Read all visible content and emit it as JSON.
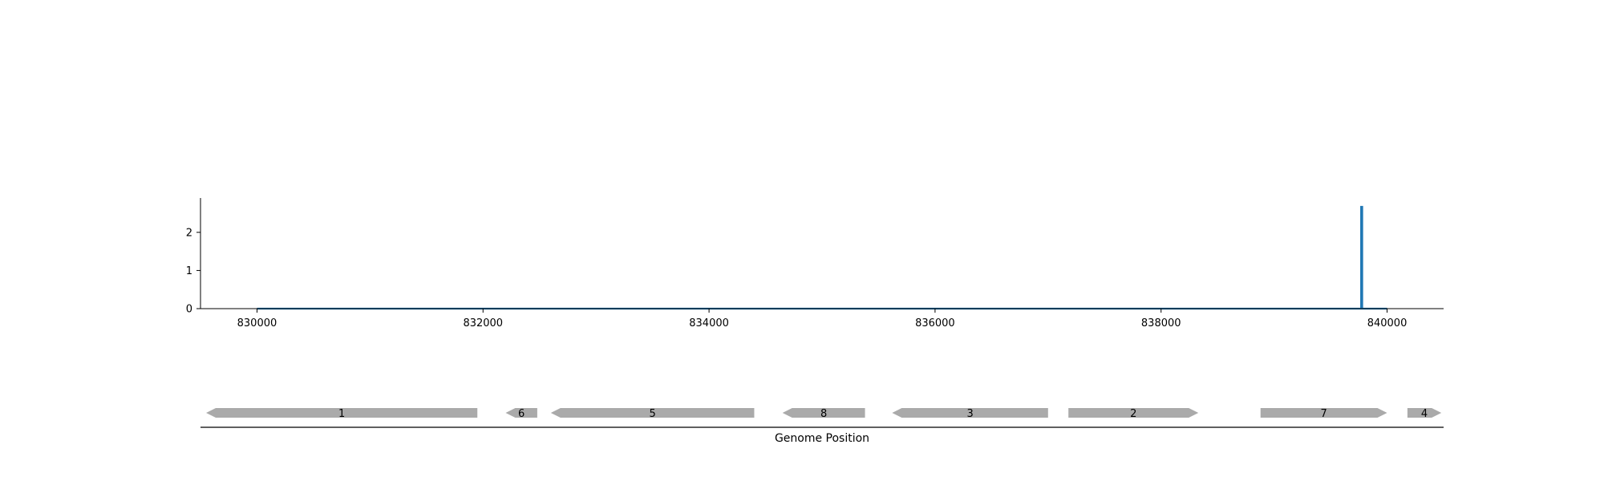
{
  "chart_data": {
    "type": "line",
    "title": "",
    "xlabel": "Genome Position",
    "ylabel": "",
    "xlim": [
      829500,
      840500
    ],
    "ylim": [
      0,
      2.9
    ],
    "x_ticks": [
      830000,
      832000,
      834000,
      836000,
      838000,
      840000
    ],
    "x_tick_labels": [
      "830000",
      "832000",
      "834000",
      "836000",
      "838000",
      "840000"
    ],
    "y_ticks": [
      0,
      1,
      2
    ],
    "y_tick_labels": [
      "0",
      "1",
      "2"
    ],
    "grid": false,
    "series": [
      {
        "color": "#1f77b4",
        "x": [
          830000,
          839770,
          839770,
          839780,
          839780,
          840000
        ],
        "values": [
          0,
          0,
          2.67,
          2.67,
          0,
          0
        ]
      }
    ],
    "genes": [
      {
        "label": "1",
        "start": 829550,
        "end": 831950,
        "strand": "-",
        "color": "#aaaaaa"
      },
      {
        "label": "6",
        "start": 832200,
        "end": 832480,
        "strand": "-",
        "color": "#aaaaaa"
      },
      {
        "label": "5",
        "start": 832600,
        "end": 834400,
        "strand": "-",
        "color": "#aaaaaa"
      },
      {
        "label": "8",
        "start": 834650,
        "end": 835380,
        "strand": "-",
        "color": "#aaaaaa"
      },
      {
        "label": "3",
        "start": 835620,
        "end": 837000,
        "strand": "-",
        "color": "#aaaaaa"
      },
      {
        "label": "2",
        "start": 837180,
        "end": 838330,
        "strand": "+",
        "color": "#aaaaaa"
      },
      {
        "label": "7",
        "start": 838880,
        "end": 840000,
        "strand": "+",
        "color": "#aaaaaa"
      },
      {
        "label": "4",
        "start": 840180,
        "end": 840480,
        "strand": "+",
        "color": "#aaaaaa"
      }
    ]
  }
}
